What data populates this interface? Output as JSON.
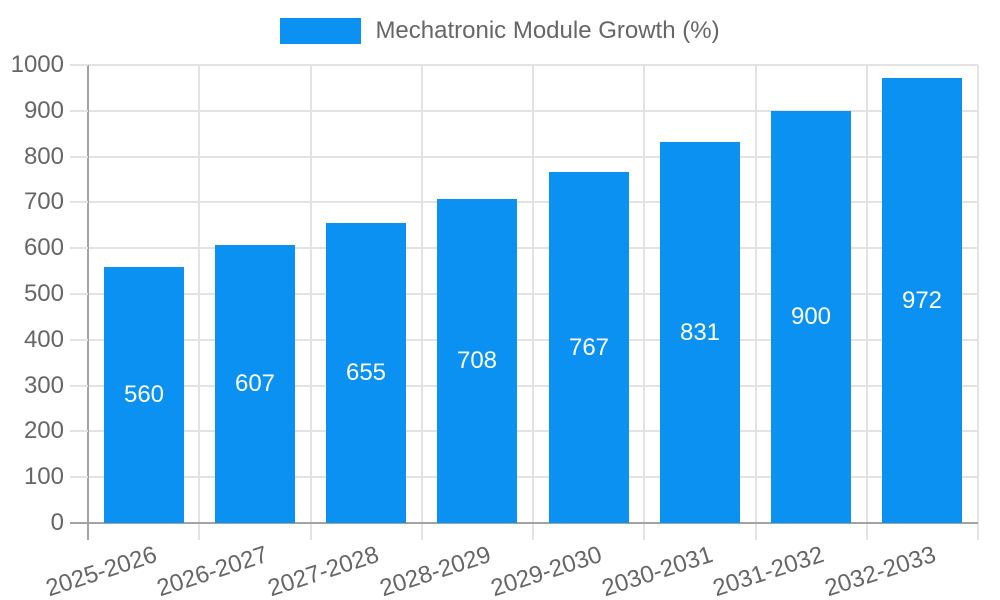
{
  "chart_data": {
    "type": "bar",
    "title": "Mechatronic Module Growth (%)",
    "categories": [
      "2025-2026",
      "2026-2027",
      "2027-2028",
      "2028-2029",
      "2029-2030",
      "2030-2031",
      "2031-2032",
      "2032-2033"
    ],
    "series": [
      {
        "name": "Mechatronic Module Growth (%)",
        "values": [
          560,
          607,
          655,
          708,
          767,
          831,
          900,
          972
        ]
      }
    ],
    "xlabel": "",
    "ylabel": "",
    "ylim": [
      0,
      1000
    ],
    "ytick_step": 100,
    "y_ticks": [
      0,
      100,
      200,
      300,
      400,
      500,
      600,
      700,
      800,
      900,
      1000
    ],
    "grid": true,
    "legend_position": "top",
    "value_labels": "centered-inside-bars",
    "colors": {
      "bar": "#0a91f2",
      "axis_text": "#666666",
      "grid_line": "#e3e3e3",
      "axis_line": "#a3a3a3",
      "value_label": "#ffffff",
      "background": "#ffffff"
    }
  }
}
